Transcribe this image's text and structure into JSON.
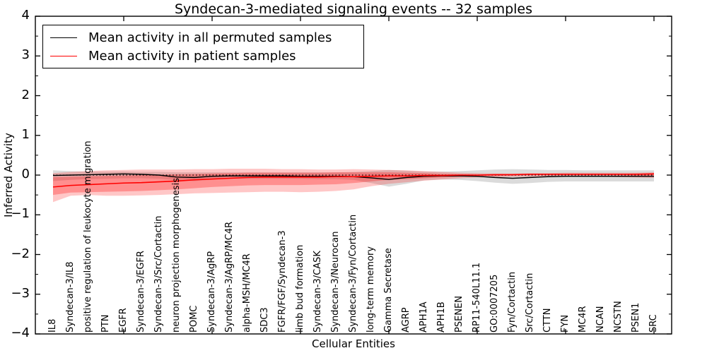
{
  "chart_data": {
    "type": "line",
    "title": "Syndecan-3-mediated signaling events -- 32 samples",
    "xlabel": "Cellular Entities",
    "ylabel": "Inferred Activity",
    "ylim": [
      -4,
      4
    ],
    "ytick_labels": [
      "4",
      "3",
      "2",
      "1",
      "0",
      "−1",
      "−2",
      "−3",
      "−4"
    ],
    "ytick_values": [
      4,
      3,
      2,
      1,
      0,
      -1,
      -2,
      -3,
      -4
    ],
    "axis_tick_entity_indices": [
      4,
      9,
      14,
      19,
      24,
      29,
      34
    ],
    "grid": false,
    "legend_position": "upper-left",
    "zero_line": {
      "value": 0,
      "style": "dotted",
      "color": "#000000"
    },
    "categories": [
      "IL8",
      "Syndecan-3/IL8",
      "positive regulation of leukocyte migration",
      "PTN",
      "EGFR",
      "Syndecan-3/EGFR",
      "Syndecan-3/Src/Cortactin",
      "neuron projection morphogenesis",
      "POMC",
      "Syndecan-3/AgRP",
      "Syndecan-3/AgRP/MC4R",
      "alpha-MSH/MC4R",
      "SDC3",
      "FGFR/FGF/Syndecan-3",
      "limb bud formation",
      "Syndecan-3/CASK",
      "Syndecan-3/Neurocan",
      "Syndecan-3/Fyn/Cortactin",
      "long-term memory",
      "Gamma Secretase",
      "AGRP",
      "APH1A",
      "APH1B",
      "PSENEN",
      "RP11-540L11.1",
      "GO:0007205",
      "Fyn/Cortactin",
      "Src/Cortactin",
      "CTTN",
      "FYN",
      "MC4R",
      "NCAN",
      "NCSTN",
      "PSEN1",
      "SRC"
    ],
    "series": [
      {
        "name": "Mean activity in all permuted samples",
        "color": "#000000",
        "values": [
          -0.01,
          0.0,
          0.01,
          0.02,
          0.03,
          0.02,
          0.0,
          -0.05,
          -0.06,
          -0.03,
          -0.02,
          -0.02,
          -0.02,
          -0.02,
          -0.03,
          -0.03,
          -0.03,
          -0.04,
          -0.07,
          -0.11,
          -0.06,
          -0.03,
          -0.02,
          -0.02,
          -0.03,
          -0.06,
          -0.08,
          -0.06,
          -0.04,
          -0.03,
          -0.03,
          -0.03,
          -0.03,
          -0.03,
          -0.03
        ]
      },
      {
        "name": "Mean activity in patient samples",
        "color": "#ff0000",
        "values": [
          -0.3,
          -0.26,
          -0.24,
          -0.22,
          -0.2,
          -0.19,
          -0.17,
          -0.15,
          -0.12,
          -0.1,
          -0.08,
          -0.06,
          -0.05,
          -0.05,
          -0.05,
          -0.05,
          -0.04,
          -0.04,
          -0.03,
          -0.02,
          -0.02,
          -0.01,
          -0.01,
          0.0,
          0.0,
          0.01,
          0.01,
          0.02,
          0.02,
          0.02,
          0.02,
          0.02,
          0.02,
          0.02,
          0.03
        ]
      }
    ],
    "bands": [
      {
        "name": "permuted-samples-range",
        "color": "rgba(0,0,0,0.14)",
        "upper": [
          0.12,
          0.1,
          0.09,
          0.09,
          0.09,
          0.08,
          0.08,
          0.07,
          0.07,
          0.07,
          0.07,
          0.07,
          0.07,
          0.07,
          0.07,
          0.07,
          0.07,
          0.08,
          0.1,
          0.13,
          0.11,
          0.09,
          0.09,
          0.1,
          0.12,
          0.14,
          0.15,
          0.14,
          0.13,
          0.13,
          0.12,
          0.12,
          0.12,
          0.12,
          0.12
        ],
        "lower": [
          -0.15,
          -0.12,
          -0.1,
          -0.09,
          -0.08,
          -0.08,
          -0.09,
          -0.13,
          -0.15,
          -0.11,
          -0.09,
          -0.09,
          -0.09,
          -0.09,
          -0.09,
          -0.1,
          -0.1,
          -0.12,
          -0.2,
          -0.29,
          -0.22,
          -0.13,
          -0.11,
          -0.12,
          -0.15,
          -0.19,
          -0.22,
          -0.2,
          -0.17,
          -0.16,
          -0.16,
          -0.16,
          -0.16,
          -0.16,
          -0.16
        ]
      },
      {
        "name": "patient-samples-range-outer",
        "color": "rgba(255,0,0,0.22)",
        "upper": [
          0.05,
          0.08,
          0.1,
          0.12,
          0.13,
          0.14,
          0.14,
          0.14,
          0.15,
          0.15,
          0.16,
          0.16,
          0.16,
          0.15,
          0.15,
          0.14,
          0.14,
          0.15,
          0.14,
          0.13,
          0.12,
          0.1,
          0.08,
          0.06,
          0.05,
          0.04,
          0.04,
          0.05,
          0.05,
          0.06,
          0.06,
          0.06,
          0.06,
          0.06,
          0.07
        ],
        "lower": [
          -0.68,
          -0.52,
          -0.5,
          -0.52,
          -0.52,
          -0.51,
          -0.5,
          -0.48,
          -0.46,
          -0.45,
          -0.44,
          -0.43,
          -0.42,
          -0.42,
          -0.43,
          -0.42,
          -0.4,
          -0.36,
          -0.28,
          -0.22,
          -0.18,
          -0.14,
          -0.11,
          -0.08,
          -0.06,
          -0.05,
          -0.04,
          -0.04,
          -0.04,
          -0.04,
          -0.04,
          -0.04,
          -0.05,
          -0.06,
          -0.07
        ]
      },
      {
        "name": "patient-samples-range-inner",
        "color": "rgba(255,0,0,0.28)",
        "upper": [
          -0.05,
          -0.04,
          -0.03,
          -0.02,
          -0.01,
          0.0,
          0.01,
          0.02,
          0.03,
          0.04,
          0.05,
          0.06,
          0.06,
          0.06,
          0.06,
          0.06,
          0.07,
          0.07,
          0.07,
          0.07,
          0.06,
          0.05,
          0.03,
          0.02,
          0.01,
          0.01,
          0.02,
          0.03,
          0.03,
          0.03,
          0.03,
          0.03,
          0.03,
          0.04,
          0.05
        ],
        "lower": [
          -0.5,
          -0.44,
          -0.43,
          -0.42,
          -0.41,
          -0.4,
          -0.38,
          -0.36,
          -0.33,
          -0.3,
          -0.28,
          -0.26,
          -0.25,
          -0.25,
          -0.25,
          -0.24,
          -0.23,
          -0.2,
          -0.16,
          -0.12,
          -0.1,
          -0.08,
          -0.06,
          -0.04,
          -0.02,
          -0.02,
          -0.01,
          0.0,
          0.0,
          0.0,
          0.0,
          0.0,
          0.0,
          -0.01,
          -0.01
        ]
      }
    ]
  }
}
